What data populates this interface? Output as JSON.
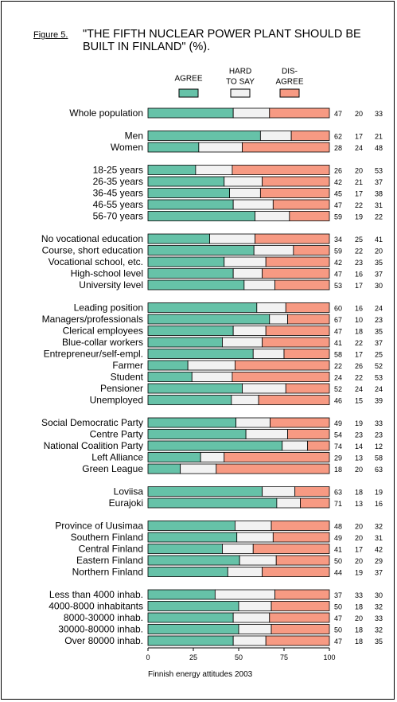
{
  "figure": {
    "label": "Figure 5.",
    "title_line1": "\"THE FIFTH NUCLEAR POWER PLANT SHOULD BE",
    "title_line2": "BUILT IN FINLAND\" (%).",
    "footer": "Finnish energy attitudes 2003"
  },
  "chart_data": {
    "type": "bar",
    "stacked": true,
    "orientation": "horizontal",
    "xlim": [
      0,
      100
    ],
    "xticks": [
      0,
      25,
      50,
      75,
      100
    ],
    "legend": {
      "placement": "top",
      "entries": [
        {
          "label": "AGREE"
        },
        {
          "label_line1": "HARD",
          "label_line2": "TO SAY"
        },
        {
          "label_line1": "DIS-",
          "label_line2": "AGREE"
        }
      ]
    },
    "colors": {
      "agree": "#66c2a8",
      "hard": "#f2f2f2",
      "disagree": "#f79a83"
    },
    "groups": [
      {
        "rows": [
          {
            "label": "Whole population",
            "values": [
              47,
              20,
              33
            ]
          }
        ]
      },
      {
        "rows": [
          {
            "label": "Men",
            "values": [
              62,
              17,
              21
            ]
          },
          {
            "label": "Women",
            "values": [
              28,
              24,
              48
            ]
          }
        ]
      },
      {
        "rows": [
          {
            "label": "18-25 years",
            "values": [
              26,
              20,
              53
            ]
          },
          {
            "label": "26-35 years",
            "values": [
              42,
              21,
              37
            ]
          },
          {
            "label": "36-45 years",
            "values": [
              45,
              17,
              38
            ]
          },
          {
            "label": "46-55 years",
            "values": [
              47,
              22,
              31
            ]
          },
          {
            "label": "56-70 years",
            "values": [
              59,
              19,
              22
            ]
          }
        ]
      },
      {
        "rows": [
          {
            "label": "No vocational education",
            "values": [
              34,
              25,
              41
            ]
          },
          {
            "label": "Course, short education",
            "values": [
              59,
              22,
              20
            ]
          },
          {
            "label": "Vocational school, etc.",
            "values": [
              42,
              23,
              35
            ]
          },
          {
            "label": "High-school level",
            "values": [
              47,
              16,
              37
            ]
          },
          {
            "label": "University level",
            "values": [
              53,
              17,
              30
            ]
          }
        ]
      },
      {
        "rows": [
          {
            "label": "Leading position",
            "values": [
              60,
              16,
              24
            ]
          },
          {
            "label": "Managers/professionals",
            "values": [
              67,
              10,
              23
            ]
          },
          {
            "label": "Clerical employees",
            "values": [
              47,
              18,
              35
            ]
          },
          {
            "label": "Blue-collar workers",
            "values": [
              41,
              22,
              37
            ]
          },
          {
            "label": "Entrepreneur/self-empl.",
            "values": [
              58,
              17,
              25
            ]
          },
          {
            "label": "Farmer",
            "values": [
              22,
              26,
              52
            ]
          },
          {
            "label": "Student",
            "values": [
              24,
              22,
              53
            ]
          },
          {
            "label": "Pensioner",
            "values": [
              52,
              24,
              24
            ]
          },
          {
            "label": "Unemployed",
            "values": [
              46,
              15,
              39
            ]
          }
        ]
      },
      {
        "rows": [
          {
            "label": "Social Democratic Party",
            "values": [
              49,
              19,
              33
            ]
          },
          {
            "label": "Centre Party",
            "values": [
              54,
              23,
              23
            ]
          },
          {
            "label": "National Coalition Party",
            "values": [
              74,
              14,
              12
            ]
          },
          {
            "label": "Left Alliance",
            "values": [
              29,
              13,
              58
            ]
          },
          {
            "label": "Green League",
            "values": [
              18,
              20,
              63
            ]
          }
        ]
      },
      {
        "rows": [
          {
            "label": "Loviisa",
            "values": [
              63,
              18,
              19
            ]
          },
          {
            "label": "Eurajoki",
            "values": [
              71,
              13,
              16
            ]
          }
        ]
      },
      {
        "rows": [
          {
            "label": "Province of Uusimaa",
            "values": [
              48,
              20,
              32
            ]
          },
          {
            "label": "Southern Finland",
            "values": [
              49,
              20,
              31
            ]
          },
          {
            "label": "Central Finland",
            "values": [
              41,
              17,
              42
            ]
          },
          {
            "label": "Eastern Finland",
            "values": [
              50,
              20,
              29
            ]
          },
          {
            "label": "Northern Finland",
            "values": [
              44,
              19,
              37
            ]
          }
        ]
      },
      {
        "rows": [
          {
            "label": "Less than 4000 inhab.",
            "values": [
              37,
              33,
              30
            ]
          },
          {
            "label": "4000-8000 inhabitants",
            "values": [
              50,
              18,
              32
            ]
          },
          {
            "label": "8000-30000 inhab.",
            "values": [
              47,
              20,
              33
            ]
          },
          {
            "label": "30000-80000 inhab.",
            "values": [
              50,
              18,
              32
            ]
          },
          {
            "label": "Over 80000 inhab.",
            "values": [
              47,
              18,
              35
            ]
          }
        ]
      }
    ]
  }
}
